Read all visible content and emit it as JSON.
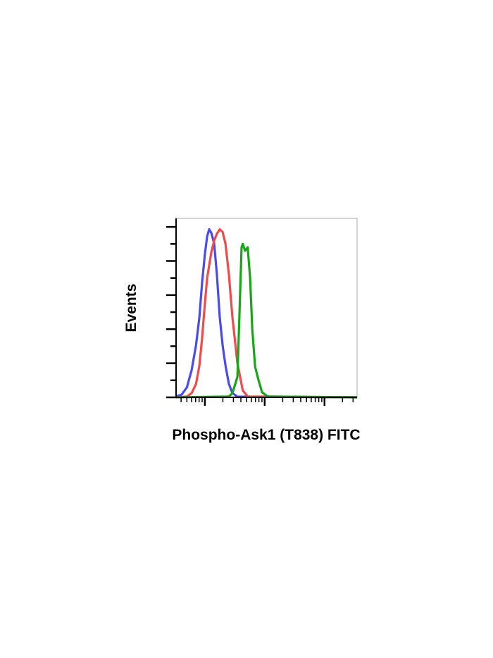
{
  "chart_data": {
    "type": "line",
    "xlabel": "Phospho-Ask1 (T838) FITC",
    "ylabel": "Events",
    "xscale": "log",
    "xlim": [
      3.3,
      3500
    ],
    "xticks": [
      4,
      5,
      6,
      7,
      8,
      9,
      10,
      20,
      30,
      40,
      50,
      60,
      70,
      80,
      90,
      100,
      200,
      300,
      400,
      500,
      600,
      700,
      800,
      900,
      1000,
      2000,
      3000
    ],
    "ylim": [
      0,
      105
    ],
    "yticks": [
      0,
      10,
      20,
      30,
      40,
      50,
      60,
      70,
      80,
      90,
      100
    ],
    "series": [
      {
        "color": "#4a4af2",
        "x": [
          3.3,
          4.1,
          5.0,
          6.0,
          7.1,
          8.1,
          9.0,
          10,
          10.9,
          11.8,
          12.8,
          14.3,
          15.9,
          17.7,
          19.8,
          22.1,
          25.2,
          28.9,
          35,
          3500
        ],
        "values": [
          0.5,
          1.6,
          5.8,
          16,
          30.5,
          47,
          67.6,
          84,
          94.4,
          98.6,
          96.5,
          90.3,
          71.8,
          47,
          30.5,
          18.6,
          7.8,
          2.5,
          0.4,
          0
        ]
      },
      {
        "color": "#f24a4a",
        "x": [
          3.3,
          5.0,
          6.0,
          7.1,
          8.1,
          9.0,
          10,
          10.9,
          12.8,
          14.3,
          15.9,
          17.7,
          19.8,
          22.1,
          25.2,
          28.9,
          35,
          43,
          52,
          3500
        ],
        "values": [
          0,
          0.4,
          2.5,
          7.8,
          18.6,
          35,
          55,
          70,
          85,
          92,
          96,
          98.6,
          97,
          90,
          72,
          47,
          20,
          4,
          0.5,
          0
        ]
      },
      {
        "color": "#18a518",
        "x": [
          3.3,
          25.2,
          28.9,
          35,
          37.9,
          41.1,
          43,
          47,
          52,
          57,
          62,
          69,
          79,
          90,
          112,
          3500
        ],
        "values": [
          0,
          0.5,
          2.5,
          12,
          50,
          88,
          90,
          86,
          88,
          70,
          40,
          18,
          10,
          3,
          0.5,
          0
        ]
      }
    ]
  }
}
